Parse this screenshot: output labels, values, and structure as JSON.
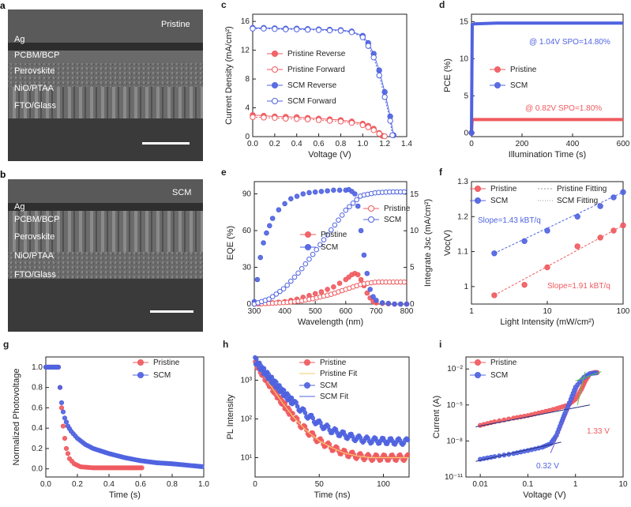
{
  "colors": {
    "pristine": "#ef5a5f",
    "scm": "#4f63e0",
    "fit_green": "#57c24a",
    "fit_navy": "#27307f"
  },
  "panels": {
    "a": {
      "letter": "a",
      "corner": "Pristine",
      "layers": [
        "Ag",
        "PCBM/BCP",
        "Perovskite",
        "NiO/PTAA",
        "FTO/Glass"
      ]
    },
    "b": {
      "letter": "b",
      "corner": "SCM",
      "layers": [
        "Ag",
        "PCBM/BCP",
        "Perovskite",
        "NiO/PTAA",
        "FTO/Glass"
      ]
    }
  },
  "chart_data": [
    {
      "panel": "c",
      "type": "line",
      "xlabel": "Voltage (V)",
      "ylabel": "Current Density (mA/cm²)",
      "xlim": [
        0,
        1.4
      ],
      "ylim": [
        0,
        17
      ],
      "xticks": [
        "0.0",
        "0.2",
        "0.4",
        "0.6",
        "0.8",
        "1.0",
        "1.2",
        "1.4"
      ],
      "yticks": [
        "0",
        "4",
        "8",
        "12",
        "16"
      ],
      "legend": [
        "Pristine Reverse",
        "Pristine Forward",
        "SCM Reverse",
        "SCM Forward"
      ],
      "series": [
        {
          "name": "Pristine Reverse",
          "x": [
            0,
            0.1,
            0.2,
            0.3,
            0.4,
            0.5,
            0.6,
            0.7,
            0.8,
            0.9,
            1.0,
            1.05,
            1.1,
            1.15,
            1.18
          ],
          "y": [
            3.0,
            2.9,
            2.8,
            2.75,
            2.7,
            2.6,
            2.5,
            2.4,
            2.3,
            2.1,
            1.8,
            1.5,
            1.1,
            0.5,
            0.1
          ]
        },
        {
          "name": "Pristine Forward",
          "x": [
            0,
            0.1,
            0.2,
            0.3,
            0.4,
            0.5,
            0.6,
            0.7,
            0.8,
            0.9,
            1.0,
            1.05,
            1.1,
            1.15,
            1.2
          ],
          "y": [
            2.7,
            2.65,
            2.6,
            2.5,
            2.45,
            2.4,
            2.3,
            2.2,
            2.1,
            1.9,
            1.6,
            1.3,
            0.9,
            0.4,
            0.05
          ]
        },
        {
          "name": "SCM Reverse",
          "x": [
            0,
            0.1,
            0.2,
            0.3,
            0.4,
            0.5,
            0.6,
            0.7,
            0.8,
            0.9,
            1.0,
            1.05,
            1.1,
            1.15,
            1.2,
            1.25,
            1.28
          ],
          "y": [
            15.1,
            15.1,
            15.05,
            15.0,
            15.0,
            14.95,
            14.9,
            14.85,
            14.8,
            14.6,
            14.0,
            13.0,
            11.5,
            9.2,
            6.2,
            2.8,
            0.2
          ]
        },
        {
          "name": "SCM Forward",
          "x": [
            0,
            0.1,
            0.2,
            0.3,
            0.4,
            0.5,
            0.6,
            0.7,
            0.8,
            0.9,
            1.0,
            1.05,
            1.1,
            1.15,
            1.2,
            1.25,
            1.27
          ],
          "y": [
            15.0,
            15.0,
            14.95,
            14.9,
            14.9,
            14.85,
            14.8,
            14.75,
            14.7,
            14.5,
            13.8,
            12.6,
            11.0,
            8.5,
            5.5,
            2.2,
            0.2
          ]
        }
      ]
    },
    {
      "panel": "d",
      "type": "line",
      "xlabel": "Illumination Time (s)",
      "ylabel": "PCE (%)",
      "xlim": [
        0,
        600
      ],
      "ylim": [
        -0.5,
        16
      ],
      "xticks": [
        "0",
        "200",
        "400",
        "600"
      ],
      "yticks": [
        "0",
        "5",
        "10",
        "15"
      ],
      "legend": [
        "Pristine",
        "SCM"
      ],
      "annotations": [
        "@ 1.04V SPO=14.80%",
        "@ 0.82V SPO=1.80%"
      ],
      "series": [
        {
          "name": "Pristine",
          "x": [
            0,
            3,
            10,
            600
          ],
          "y": [
            0,
            1.8,
            1.8,
            1.8
          ]
        },
        {
          "name": "SCM",
          "x": [
            0,
            3,
            10,
            100,
            300,
            500,
            600
          ],
          "y": [
            0,
            14.6,
            14.7,
            14.8,
            14.8,
            14.8,
            14.8
          ]
        }
      ]
    },
    {
      "panel": "e",
      "type": "scatter",
      "xlabel": "Wavelength (nm)",
      "ylabel": "EQE (%)",
      "y2label": "Integrate Jsc (mA/cm²)",
      "xlim": [
        300,
        800
      ],
      "ylim": [
        0,
        100
      ],
      "y2lim": [
        0,
        16.7
      ],
      "xticks": [
        "300",
        "400",
        "500",
        "600",
        "700",
        "800"
      ],
      "yticks": [
        "0",
        "30",
        "60",
        "90"
      ],
      "y2ticks": [
        "0",
        "5",
        "10",
        "15"
      ],
      "legend": [
        "Pristine",
        "SCM",
        "Pristine",
        "SCM"
      ],
      "series": [
        {
          "name": "Pristine",
          "x": [
            300,
            320,
            340,
            360,
            380,
            400,
            420,
            440,
            460,
            480,
            500,
            520,
            540,
            560,
            580,
            600,
            610,
            620,
            630,
            640,
            650,
            660,
            670,
            680,
            690,
            700,
            720,
            740,
            760,
            780,
            800
          ],
          "y": [
            0,
            0.3,
            0.6,
            1,
            1.5,
            2,
            3,
            4,
            5.5,
            7,
            8.5,
            10,
            12,
            14,
            17,
            20,
            22,
            24,
            25,
            24,
            20,
            15,
            9,
            5,
            2,
            1,
            0.5,
            0.2,
            0,
            0,
            0
          ]
        },
        {
          "name": "SCM",
          "x": [
            300,
            310,
            320,
            330,
            340,
            350,
            360,
            380,
            400,
            420,
            440,
            460,
            480,
            500,
            520,
            540,
            560,
            580,
            600,
            610,
            620,
            630,
            640,
            650,
            660,
            670,
            680,
            690,
            700,
            720,
            740,
            760,
            780,
            800
          ],
          "y": [
            2,
            20,
            38,
            50,
            58,
            64,
            70,
            77,
            82,
            86,
            88,
            90,
            91,
            91.5,
            92,
            92.5,
            93,
            93,
            93,
            93.5,
            92,
            90,
            80,
            60,
            40,
            25,
            12,
            6,
            3,
            1,
            0.5,
            0,
            0,
            0
          ]
        },
        {
          "name": "Pristine",
          "axis": "y2",
          "x": [
            300,
            350,
            400,
            450,
            500,
            550,
            600,
            650,
            700,
            750,
            800
          ],
          "y": [
            0,
            0.1,
            0.2,
            0.4,
            0.8,
            1.3,
            2.0,
            2.7,
            3.0,
            3.0,
            3.0
          ]
        },
        {
          "name": "SCM",
          "axis": "y2",
          "x": [
            300,
            350,
            400,
            450,
            500,
            550,
            600,
            650,
            700,
            750,
            800
          ],
          "y": [
            0,
            0.7,
            2.2,
            4.5,
            7.2,
            10.0,
            12.8,
            14.8,
            15.2,
            15.3,
            15.3
          ]
        }
      ]
    },
    {
      "panel": "f",
      "type": "scatter",
      "xlabel": "Light Intensity (mW/cm²)",
      "ylabel": "Voc(V)",
      "xlim": [
        1,
        100
      ],
      "xscale": "log",
      "ylim": [
        0.95,
        1.3
      ],
      "xticks": [
        "1",
        "10",
        "100"
      ],
      "yticks": [
        "1",
        "1.1",
        "1.2",
        "1.3"
      ],
      "legend": [
        "Pristine",
        "SCM",
        "Pristine Fitting",
        "SCM Fitting"
      ],
      "annotations": [
        "Slope=1.43 kBT/q",
        "Slope=1.91 kBT/q"
      ],
      "series": [
        {
          "name": "Pristine",
          "x": [
            2,
            5,
            10,
            25,
            50,
            75,
            100
          ],
          "y": [
            0.975,
            1.005,
            1.055,
            1.115,
            1.14,
            1.16,
            1.175
          ]
        },
        {
          "name": "SCM",
          "x": [
            2,
            5,
            10,
            25,
            50,
            75,
            100
          ],
          "y": [
            1.095,
            1.13,
            1.16,
            1.2,
            1.23,
            1.255,
            1.27
          ]
        }
      ]
    },
    {
      "panel": "g",
      "type": "scatter",
      "xlabel": "Time (s)",
      "ylabel": "Normalized Photovoltage",
      "xlim": [
        0,
        1.0
      ],
      "ylim": [
        -0.08,
        1.1
      ],
      "xticks": [
        "0.0",
        "0.2",
        "0.4",
        "0.6",
        "0.8",
        "1.0"
      ],
      "yticks": [
        "0.0",
        "0.2",
        "0.4",
        "0.6",
        "0.8",
        "1.0"
      ],
      "legend": [
        "Pristine",
        "SCM"
      ],
      "series": [
        {
          "name": "Pristine",
          "x": [
            0,
            0.02,
            0.04,
            0.06,
            0.08,
            0.09,
            0.1,
            0.11,
            0.12,
            0.13,
            0.15,
            0.18,
            0.22,
            0.3,
            0.4,
            0.5,
            0.62
          ],
          "y": [
            1,
            1,
            1,
            1,
            1,
            0.8,
            0.6,
            0.42,
            0.3,
            0.2,
            0.1,
            0.05,
            0.02,
            0.01,
            0.01,
            0.01,
            0.01
          ]
        },
        {
          "name": "SCM",
          "x": [
            0,
            0.02,
            0.04,
            0.06,
            0.08,
            0.09,
            0.1,
            0.11,
            0.12,
            0.14,
            0.16,
            0.2,
            0.25,
            0.3,
            0.4,
            0.5,
            0.6,
            0.7,
            0.8,
            0.9,
            1.0
          ],
          "y": [
            1,
            1,
            1,
            1,
            1,
            0.8,
            0.65,
            0.56,
            0.5,
            0.42,
            0.37,
            0.3,
            0.24,
            0.2,
            0.15,
            0.11,
            0.08,
            0.06,
            0.05,
            0.035,
            0.02
          ]
        }
      ]
    },
    {
      "panel": "h",
      "type": "scatter",
      "xlabel": "Time (ns)",
      "ylabel": "PL Intensity",
      "xlim": [
        0,
        120
      ],
      "ylim_log10": [
        0.5,
        3.6
      ],
      "yscale": "log",
      "xticks": [
        "0",
        "50",
        "100"
      ],
      "yticks": [
        "10¹",
        "10²",
        "10³"
      ],
      "legend": [
        "Pristine",
        "Pristine Fit",
        "SCM",
        "SCM Fit"
      ],
      "series": [
        {
          "name": "Pristine",
          "x": [
            0,
            5,
            10,
            15,
            20,
            25,
            30,
            40,
            50,
            60,
            70,
            80,
            90,
            100,
            110,
            120
          ],
          "y": [
            3000,
            1600,
            900,
            520,
            300,
            180,
            110,
            50,
            27,
            18,
            13,
            11,
            10,
            10,
            10,
            10
          ]
        },
        {
          "name": "SCM",
          "x": [
            0,
            5,
            10,
            15,
            20,
            25,
            30,
            40,
            50,
            60,
            70,
            80,
            90,
            100,
            110,
            120
          ],
          "y": [
            3300,
            2000,
            1300,
            850,
            560,
            380,
            260,
            130,
            75,
            50,
            38,
            31,
            28,
            27,
            26,
            26
          ]
        }
      ]
    },
    {
      "panel": "i",
      "type": "scatter",
      "xlabel": "Voltage (V)",
      "ylabel": "Current (A)",
      "xlim": [
        0.005,
        10
      ],
      "xscale": "log",
      "ylim_log10": [
        -11,
        -1
      ],
      "yscale": "log",
      "xticks": [
        "0.01",
        "0.1",
        "1",
        "10"
      ],
      "yticks": [
        "10⁻¹¹",
        "10⁻⁸",
        "10⁻⁵",
        "10⁻²"
      ],
      "legend": [
        "Pristine",
        "SCM"
      ],
      "annotations": [
        "1.33 V",
        "0.32 V"
      ],
      "series": [
        {
          "name": "Pristine",
          "x": [
            0.01,
            0.02,
            0.05,
            0.1,
            0.2,
            0.4,
            0.7,
            1.0,
            1.33,
            1.6,
            2,
            2.5,
            3
          ],
          "y": [
            2e-07,
            4e-07,
            8e-07,
            1.3e-06,
            2.5e-06,
            5e-06,
            1e-05,
            3e-05,
            0.0002,
            0.001,
            0.004,
            0.005,
            0.005
          ]
        },
        {
          "name": "SCM",
          "x": [
            0.01,
            0.02,
            0.05,
            0.1,
            0.2,
            0.3,
            0.4,
            0.5,
            0.6,
            0.8,
            1.0,
            1.5,
            2,
            3
          ],
          "y": [
            3e-10,
            5e-10,
            9e-10,
            1.6e-09,
            3e-09,
            6e-09,
            3e-08,
            3e-07,
            2e-06,
            3e-05,
            0.0003,
            0.002,
            0.004,
            0.005
          ]
        }
      ]
    }
  ],
  "letters": [
    "c",
    "d",
    "e",
    "f",
    "g",
    "h",
    "i"
  ]
}
